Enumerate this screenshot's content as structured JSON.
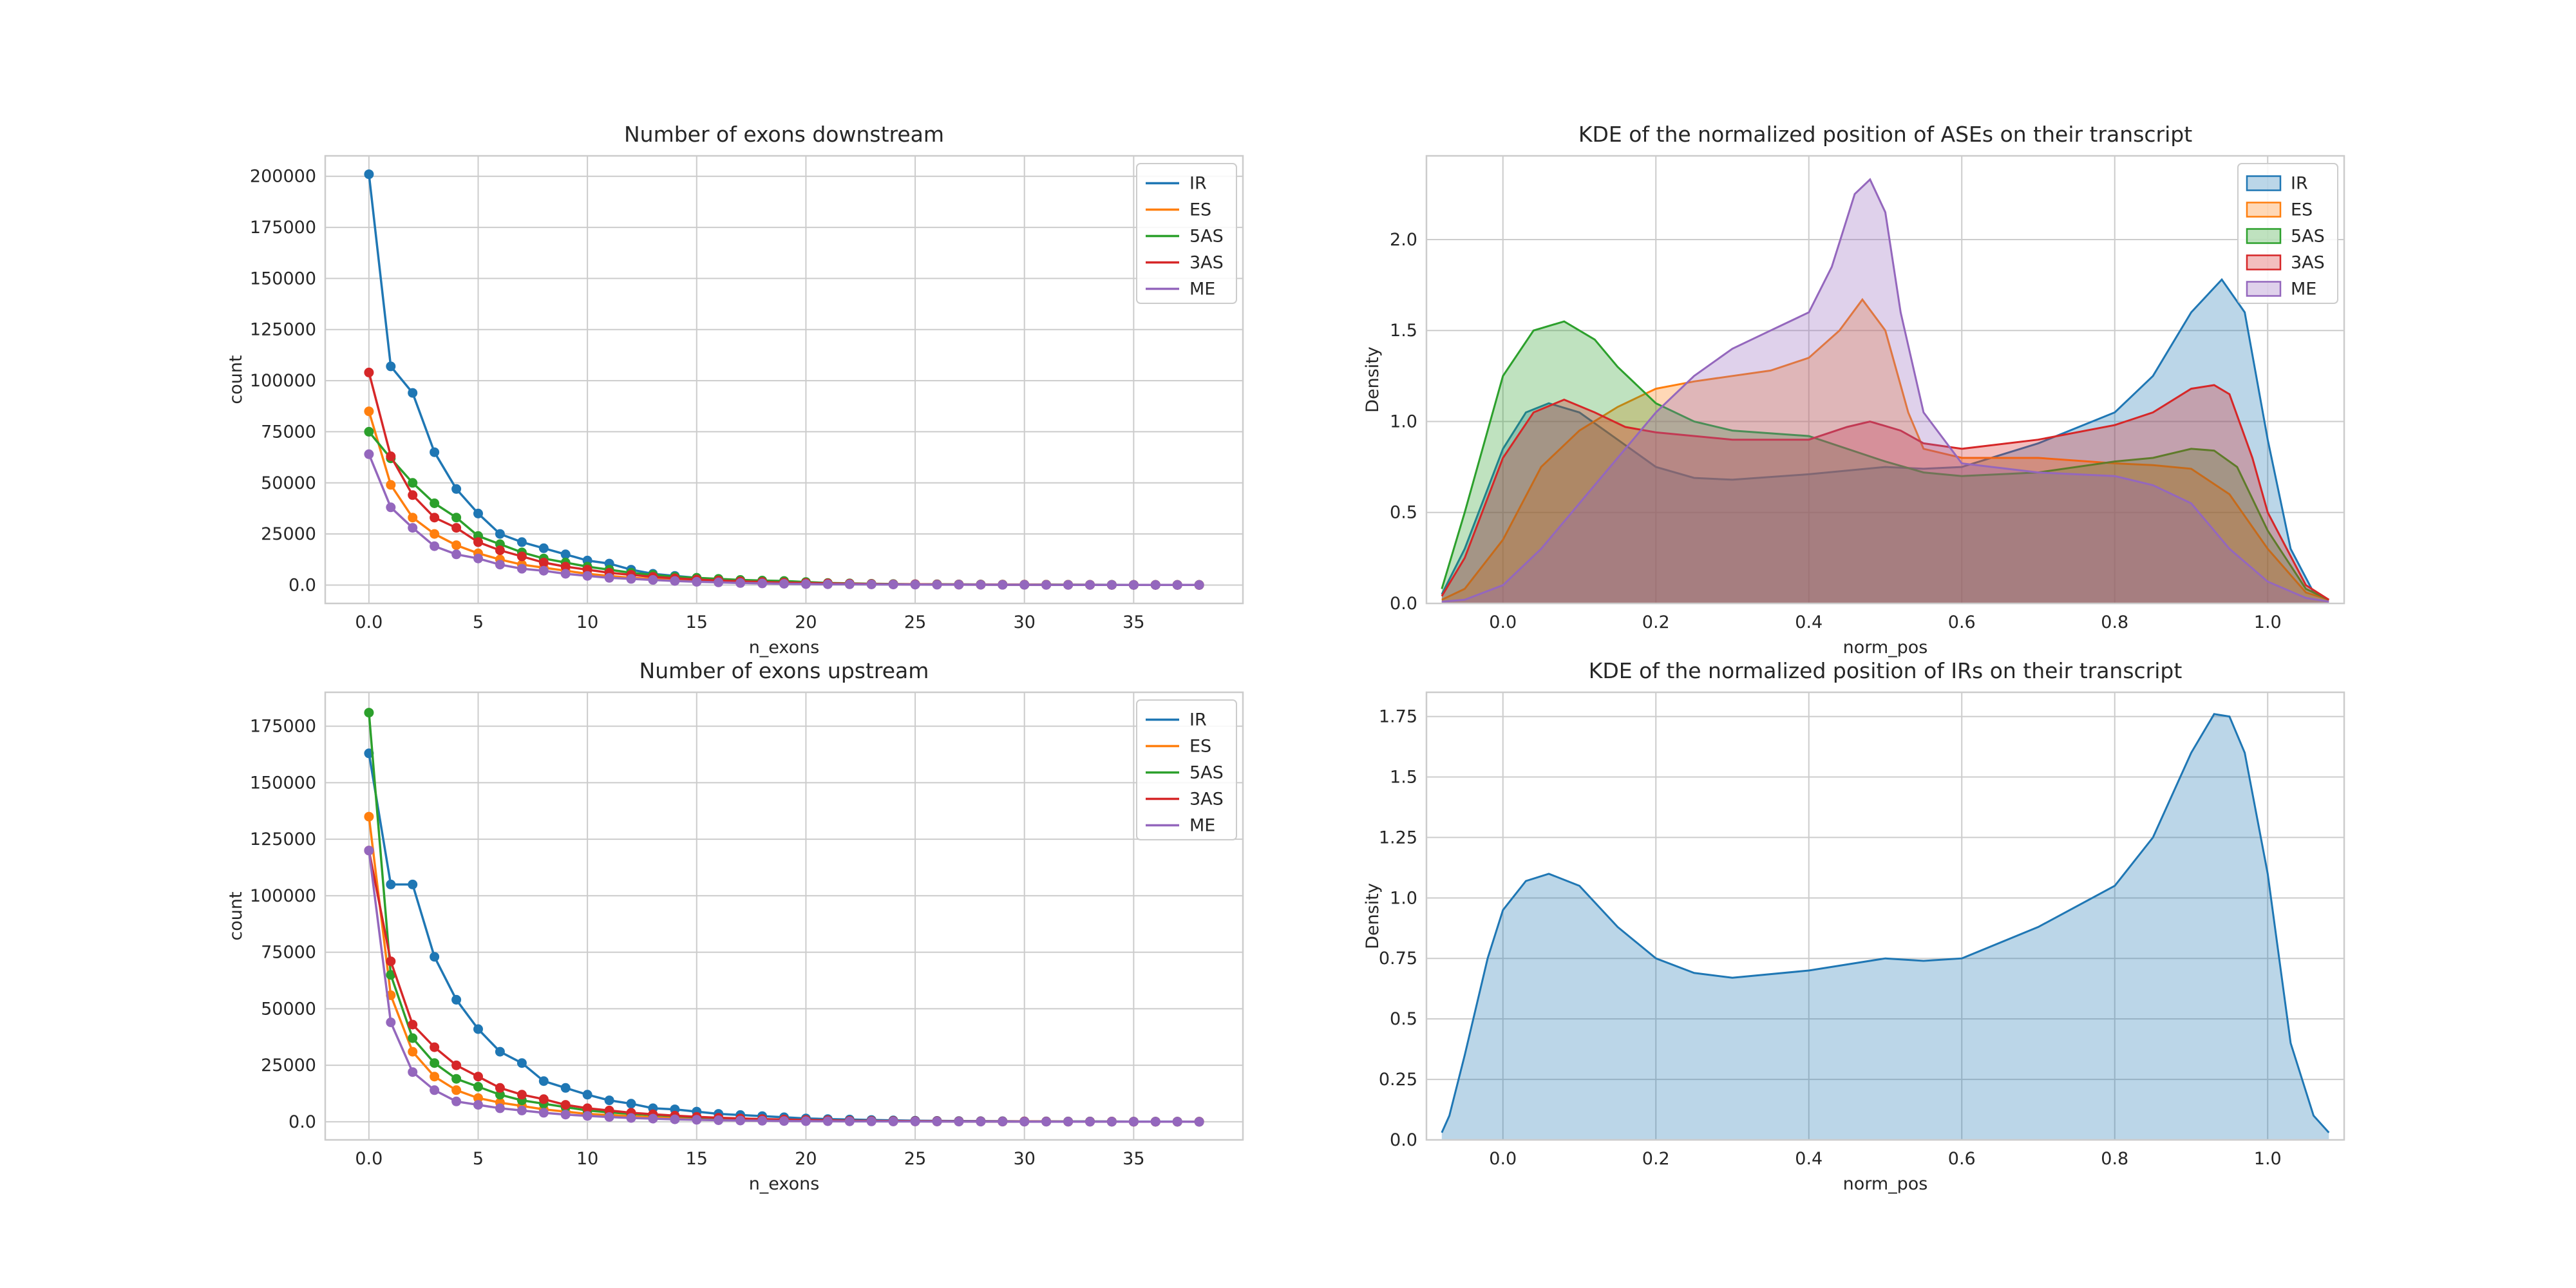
{
  "colors": {
    "IR": "#1f77b4",
    "ES": "#ff7f0e",
    "5AS": "#2ca02c",
    "3AS": "#d62728",
    "ME": "#9467bd"
  },
  "chart_data": [
    {
      "id": "downstream",
      "type": "line",
      "title": "Number of exons downstream",
      "xlabel": "n_exons",
      "ylabel": "count",
      "xlim": [
        -2,
        40
      ],
      "ylim": [
        -9000,
        210000
      ],
      "xticks": [
        0,
        5,
        10,
        15,
        20,
        25,
        30,
        35
      ],
      "yticks": [
        0,
        25000,
        50000,
        75000,
        100000,
        125000,
        150000,
        175000,
        200000
      ],
      "grid": true,
      "legend": "top-right",
      "x": [
        0,
        1,
        2,
        3,
        4,
        5,
        6,
        7,
        8,
        9,
        10,
        11,
        12,
        13,
        14,
        15,
        16,
        17,
        18,
        19,
        20,
        21,
        22,
        23,
        24,
        25,
        26,
        27,
        28,
        29,
        30,
        31,
        32,
        33,
        34,
        35,
        36,
        37,
        38
      ],
      "series": [
        {
          "name": "IR",
          "values": [
            201000,
            107000,
            94000,
            65000,
            47000,
            35000,
            25000,
            21000,
            18000,
            15000,
            12000,
            10500,
            7500,
            5500,
            4500,
            3500,
            2500,
            2000,
            1500,
            1200,
            1000,
            800,
            600,
            500,
            400,
            350,
            300,
            250,
            200,
            180,
            160,
            140,
            120,
            100,
            90,
            80,
            70,
            60,
            50
          ]
        },
        {
          "name": "ES",
          "values": [
            85000,
            49000,
            33000,
            25000,
            19500,
            15500,
            12500,
            10000,
            8500,
            7000,
            5500,
            4500,
            3500,
            3000,
            2500,
            2000,
            1700,
            1400,
            1200,
            1000,
            800,
            650,
            500,
            400,
            350,
            300,
            250,
            200,
            180,
            160,
            140,
            120,
            100,
            90,
            80,
            70,
            60,
            50,
            40
          ]
        },
        {
          "name": "5AS",
          "values": [
            75000,
            62000,
            50000,
            40000,
            33000,
            24000,
            20000,
            16000,
            13000,
            11000,
            9000,
            7500,
            6000,
            5000,
            4000,
            3500,
            3000,
            2500,
            2200,
            2000,
            1500,
            1000,
            800,
            600,
            500,
            400,
            350,
            300,
            250,
            200,
            180,
            160,
            140,
            120,
            100,
            90,
            80,
            70,
            60
          ]
        },
        {
          "name": "3AS",
          "values": [
            104000,
            63000,
            44000,
            33000,
            28000,
            21000,
            17000,
            14000,
            11000,
            9000,
            7500,
            6000,
            5000,
            4000,
            3300,
            2700,
            2200,
            1800,
            1500,
            1200,
            1000,
            800,
            650,
            500,
            400,
            350,
            300,
            250,
            200,
            180,
            160,
            140,
            120,
            100,
            90,
            80,
            70,
            60,
            50
          ]
        },
        {
          "name": "ME",
          "values": [
            64000,
            38000,
            28000,
            19000,
            15000,
            13000,
            10000,
            8000,
            7000,
            5500,
            4500,
            3500,
            3000,
            2500,
            2000,
            1600,
            1300,
            1000,
            800,
            600,
            500,
            400,
            350,
            300,
            250,
            200,
            180,
            160,
            140,
            120,
            100,
            90,
            80,
            70,
            60,
            50,
            40,
            35,
            30
          ]
        }
      ]
    },
    {
      "id": "kde-ases",
      "type": "area",
      "title": "KDE of the normalized position of ASEs on their transcript",
      "xlabel": "norm_pos",
      "ylabel": "Density",
      "xlim": [
        -0.1,
        1.1
      ],
      "ylim": [
        0,
        2.46
      ],
      "xticks": [
        0.0,
        0.2,
        0.4,
        0.6,
        0.8,
        1.0
      ],
      "yticks": [
        0.0,
        0.5,
        1.0,
        1.5,
        2.0
      ],
      "grid": true,
      "legend": "top-right",
      "fill_alpha": 0.3,
      "series": [
        {
          "name": "IR",
          "x": [
            -0.08,
            -0.05,
            0,
            0.03,
            0.06,
            0.1,
            0.15,
            0.2,
            0.25,
            0.3,
            0.4,
            0.5,
            0.55,
            0.6,
            0.7,
            0.8,
            0.85,
            0.9,
            0.94,
            0.97,
            1.0,
            1.03,
            1.06,
            1.08
          ],
          "values": [
            0.05,
            0.3,
            0.85,
            1.05,
            1.1,
            1.05,
            0.9,
            0.75,
            0.69,
            0.68,
            0.71,
            0.75,
            0.74,
            0.75,
            0.88,
            1.05,
            1.25,
            1.6,
            1.78,
            1.6,
            0.9,
            0.3,
            0.06,
            0.02
          ]
        },
        {
          "name": "ES",
          "x": [
            -0.08,
            -0.05,
            0,
            0.05,
            0.1,
            0.15,
            0.2,
            0.25,
            0.3,
            0.35,
            0.4,
            0.44,
            0.47,
            0.5,
            0.53,
            0.55,
            0.6,
            0.7,
            0.8,
            0.85,
            0.9,
            0.95,
            1.0,
            1.05,
            1.08
          ],
          "values": [
            0.02,
            0.08,
            0.35,
            0.75,
            0.95,
            1.08,
            1.18,
            1.22,
            1.25,
            1.28,
            1.35,
            1.5,
            1.67,
            1.5,
            1.05,
            0.85,
            0.8,
            0.8,
            0.77,
            0.76,
            0.74,
            0.6,
            0.3,
            0.06,
            0.02
          ]
        },
        {
          "name": "5AS",
          "x": [
            -0.08,
            -0.05,
            0,
            0.04,
            0.08,
            0.12,
            0.15,
            0.2,
            0.25,
            0.3,
            0.4,
            0.5,
            0.55,
            0.6,
            0.7,
            0.8,
            0.85,
            0.9,
            0.93,
            0.96,
            1.0,
            1.05,
            1.08
          ],
          "values": [
            0.08,
            0.5,
            1.25,
            1.5,
            1.55,
            1.45,
            1.3,
            1.1,
            1.0,
            0.95,
            0.92,
            0.78,
            0.72,
            0.7,
            0.72,
            0.78,
            0.8,
            0.85,
            0.84,
            0.75,
            0.4,
            0.08,
            0.02
          ]
        },
        {
          "name": "3AS",
          "x": [
            -0.08,
            -0.05,
            0,
            0.04,
            0.08,
            0.12,
            0.16,
            0.2,
            0.3,
            0.4,
            0.45,
            0.48,
            0.52,
            0.55,
            0.6,
            0.7,
            0.8,
            0.85,
            0.9,
            0.93,
            0.95,
            0.98,
            1.0,
            1.05,
            1.08
          ],
          "values": [
            0.04,
            0.25,
            0.8,
            1.05,
            1.12,
            1.05,
            0.97,
            0.94,
            0.9,
            0.9,
            0.97,
            1.0,
            0.95,
            0.88,
            0.85,
            0.9,
            0.98,
            1.05,
            1.18,
            1.2,
            1.15,
            0.8,
            0.5,
            0.1,
            0.02
          ]
        },
        {
          "name": "ME",
          "x": [
            -0.08,
            -0.05,
            0,
            0.05,
            0.1,
            0.15,
            0.2,
            0.25,
            0.3,
            0.35,
            0.4,
            0.43,
            0.46,
            0.48,
            0.5,
            0.52,
            0.55,
            0.6,
            0.7,
            0.8,
            0.85,
            0.9,
            0.95,
            1.0,
            1.05,
            1.08
          ],
          "values": [
            0.01,
            0.02,
            0.1,
            0.3,
            0.55,
            0.8,
            1.05,
            1.25,
            1.4,
            1.5,
            1.6,
            1.85,
            2.25,
            2.33,
            2.15,
            1.6,
            1.05,
            0.77,
            0.72,
            0.7,
            0.65,
            0.55,
            0.3,
            0.12,
            0.03,
            0.01
          ]
        }
      ]
    },
    {
      "id": "upstream",
      "type": "line",
      "title": "Number of exons upstream",
      "xlabel": "n_exons",
      "ylabel": "count",
      "xlim": [
        -2,
        40
      ],
      "ylim": [
        -8000,
        190000
      ],
      "xticks": [
        0,
        5,
        10,
        15,
        20,
        25,
        30,
        35
      ],
      "yticks": [
        0,
        25000,
        50000,
        75000,
        100000,
        125000,
        150000,
        175000
      ],
      "grid": true,
      "legend": "top-right",
      "x": [
        0,
        1,
        2,
        3,
        4,
        5,
        6,
        7,
        8,
        9,
        10,
        11,
        12,
        13,
        14,
        15,
        16,
        17,
        18,
        19,
        20,
        21,
        22,
        23,
        24,
        25,
        26,
        27,
        28,
        29,
        30,
        31,
        32,
        33,
        34,
        35,
        36,
        37,
        38
      ],
      "series": [
        {
          "name": "IR",
          "values": [
            163000,
            105000,
            105000,
            73000,
            54000,
            41000,
            31000,
            26000,
            18000,
            15000,
            12000,
            9500,
            8000,
            6000,
            5500,
            4500,
            3500,
            3000,
            2500,
            2000,
            1500,
            1200,
            1000,
            800,
            600,
            500,
            400,
            350,
            300,
            250,
            200,
            180,
            160,
            140,
            120,
            100,
            90,
            80,
            70
          ]
        },
        {
          "name": "ES",
          "values": [
            135000,
            56000,
            31000,
            20000,
            14000,
            10500,
            8500,
            7000,
            5500,
            4500,
            3500,
            3000,
            2500,
            2000,
            1600,
            1300,
            1000,
            800,
            600,
            500,
            400,
            350,
            300,
            250,
            200,
            180,
            160,
            140,
            120,
            100,
            90,
            80,
            70,
            60,
            50,
            40,
            35,
            30,
            25
          ]
        },
        {
          "name": "5AS",
          "values": [
            181000,
            65000,
            37000,
            26000,
            19000,
            15500,
            12000,
            9500,
            8000,
            6500,
            5000,
            4200,
            3500,
            3000,
            2500,
            2000,
            1700,
            1400,
            1100,
            900,
            700,
            550,
            450,
            350,
            300,
            250,
            200,
            180,
            160,
            140,
            120,
            100,
            90,
            80,
            70,
            60,
            50,
            40,
            35
          ]
        },
        {
          "name": "3AS",
          "values": [
            120000,
            71000,
            43000,
            33000,
            25000,
            20000,
            15000,
            12000,
            10000,
            7500,
            6000,
            5000,
            4000,
            3300,
            2700,
            2200,
            1800,
            1500,
            1200,
            1000,
            800,
            650,
            500,
            400,
            350,
            300,
            250,
            200,
            180,
            160,
            140,
            120,
            100,
            90,
            80,
            70,
            60,
            50,
            40
          ]
        },
        {
          "name": "ME",
          "values": [
            120000,
            44000,
            22000,
            14000,
            9000,
            7500,
            6000,
            5000,
            4000,
            3200,
            2600,
            2100,
            1700,
            1400,
            1100,
            900,
            700,
            550,
            450,
            350,
            300,
            250,
            200,
            180,
            160,
            140,
            120,
            100,
            90,
            80,
            70,
            60,
            50,
            40,
            35,
            30,
            25,
            20,
            15
          ]
        }
      ]
    },
    {
      "id": "kde-irs",
      "type": "area",
      "title": "KDE of the normalized position of IRs on their transcript",
      "xlabel": "norm_pos",
      "ylabel": "Density",
      "xlim": [
        -0.1,
        1.1
      ],
      "ylim": [
        0,
        1.85
      ],
      "xticks": [
        0.0,
        0.2,
        0.4,
        0.6,
        0.8,
        1.0
      ],
      "yticks": [
        0.0,
        0.25,
        0.5,
        0.75,
        1.0,
        1.25,
        1.5,
        1.75
      ],
      "grid": true,
      "legend": "none",
      "fill_alpha": 0.3,
      "series": [
        {
          "name": "IR",
          "x": [
            -0.08,
            -0.07,
            -0.05,
            -0.02,
            0.0,
            0.03,
            0.06,
            0.1,
            0.15,
            0.2,
            0.25,
            0.3,
            0.4,
            0.5,
            0.55,
            0.6,
            0.7,
            0.8,
            0.85,
            0.9,
            0.93,
            0.95,
            0.97,
            1.0,
            1.03,
            1.06,
            1.08
          ],
          "values": [
            0.03,
            0.1,
            0.35,
            0.75,
            0.95,
            1.07,
            1.1,
            1.05,
            0.88,
            0.75,
            0.69,
            0.67,
            0.7,
            0.75,
            0.74,
            0.75,
            0.88,
            1.05,
            1.25,
            1.6,
            1.76,
            1.75,
            1.6,
            1.1,
            0.4,
            0.1,
            0.03
          ]
        }
      ]
    }
  ]
}
